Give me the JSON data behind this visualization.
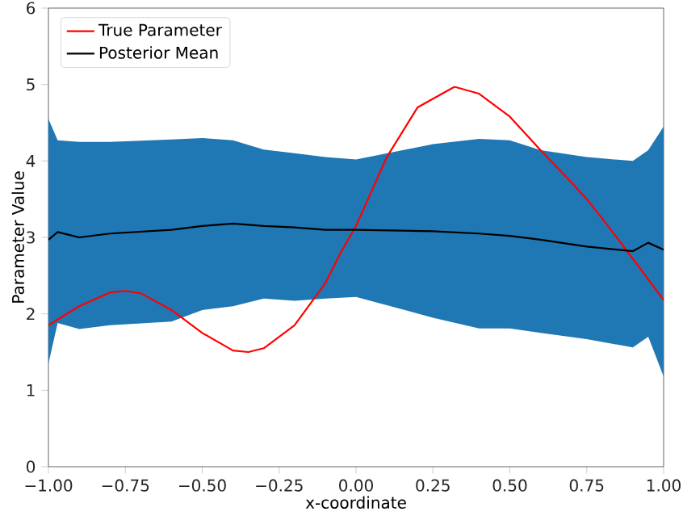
{
  "chart_data": {
    "type": "line",
    "xlabel": "x-coordinate",
    "ylabel": "Parameter Value",
    "xlim": [
      -1,
      1
    ],
    "ylim": [
      0,
      6
    ],
    "xticks": [
      {
        "value": -1,
        "label": "−1.00"
      },
      {
        "value": -0.75,
        "label": "−0.75"
      },
      {
        "value": -0.5,
        "label": "−0.50"
      },
      {
        "value": -0.25,
        "label": "−0.25"
      },
      {
        "value": 0,
        "label": "0.00"
      },
      {
        "value": 0.25,
        "label": "0.25"
      },
      {
        "value": 0.5,
        "label": "0.50"
      },
      {
        "value": 0.75,
        "label": "0.75"
      },
      {
        "value": 1,
        "label": "1.00"
      }
    ],
    "yticks": [
      0,
      1,
      2,
      3,
      4,
      5,
      6
    ],
    "legend": "top left",
    "grid": false,
    "series": [
      {
        "name": "True Parameter",
        "color": "#ff0000",
        "x": [
          -1,
          -0.9,
          -0.8,
          -0.75,
          -0.7,
          -0.6,
          -0.5,
          -0.4,
          -0.35,
          -0.3,
          -0.2,
          -0.1,
          -0.05,
          0,
          0.1,
          0.2,
          0.32,
          0.4,
          0.5,
          0.6,
          0.7,
          0.75,
          0.8,
          0.9,
          1
        ],
        "values": [
          1.85,
          2.1,
          2.28,
          2.3,
          2.27,
          2.05,
          1.75,
          1.52,
          1.5,
          1.55,
          1.85,
          2.4,
          2.8,
          3.15,
          4.05,
          4.7,
          4.97,
          4.88,
          4.58,
          4.14,
          3.72,
          3.5,
          3.25,
          2.72,
          2.18
        ]
      },
      {
        "name": "Posterior Mean",
        "color": "#000000",
        "x": [
          -1,
          -0.97,
          -0.9,
          -0.8,
          -0.6,
          -0.5,
          -0.4,
          -0.3,
          -0.2,
          -0.1,
          0,
          0.25,
          0.4,
          0.5,
          0.6,
          0.75,
          0.9,
          0.95,
          1
        ],
        "values": [
          2.97,
          3.07,
          3.0,
          3.05,
          3.1,
          3.15,
          3.18,
          3.15,
          3.13,
          3.1,
          3.1,
          3.08,
          3.05,
          3.02,
          2.97,
          2.88,
          2.82,
          2.93,
          2.84
        ],
        "lower": [
          1.35,
          1.88,
          1.8,
          1.85,
          1.9,
          2.05,
          2.1,
          2.2,
          2.17,
          2.2,
          2.22,
          1.95,
          1.81,
          1.81,
          1.75,
          1.67,
          1.56,
          1.7,
          1.18
        ],
        "upper": [
          4.55,
          4.27,
          4.25,
          4.25,
          4.28,
          4.3,
          4.27,
          4.15,
          4.1,
          4.05,
          4.02,
          4.22,
          4.29,
          4.27,
          4.14,
          4.05,
          4.0,
          4.14,
          4.45
        ]
      }
    ]
  }
}
